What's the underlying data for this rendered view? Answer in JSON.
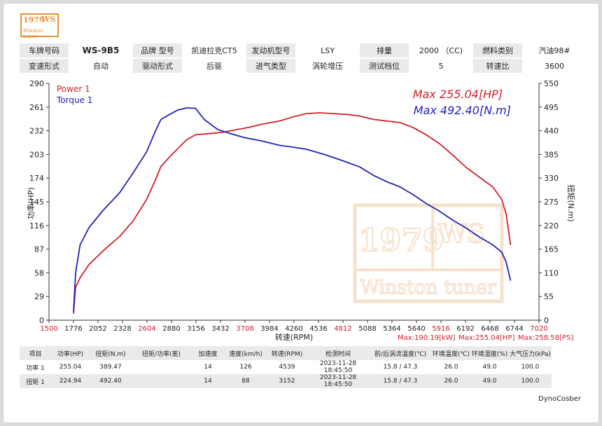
{
  "logo": {
    "year": "1979",
    "ws": "WS",
    "sub": "Winston tuner"
  },
  "info_rows": [
    [
      {
        "label": "车牌号码",
        "value": "WS-9B5",
        "bold": true
      },
      {
        "label": "品牌 型号",
        "value": "凯迪拉克CT5"
      },
      {
        "label": "发动机型号",
        "value": "LSY"
      },
      {
        "label": "排量",
        "value": "2000 （CC)"
      },
      {
        "label": "燃料类别",
        "value": "汽油98#"
      }
    ],
    [
      {
        "label": "变速形式",
        "value": "自动"
      },
      {
        "label": "驱动形式",
        "value": "后驱"
      },
      {
        "label": "进气类型",
        "value": "涡轮增压"
      },
      {
        "label": "测试档位",
        "value": "5"
      },
      {
        "label": "转速比",
        "value": "3600"
      }
    ]
  ],
  "chart_data": {
    "type": "line",
    "xlabel": "转速(RPM)",
    "ylabel": "功率(HP)",
    "y2label": "扭矩(N.m)",
    "xlim": [
      1500,
      7020
    ],
    "ylim": [
      0,
      290
    ],
    "y2lim": [
      0,
      550
    ],
    "x_ticks": [
      1500,
      1776,
      2052,
      2328,
      2604,
      2880,
      3156,
      3432,
      3708,
      3984,
      4260,
      4536,
      4812,
      5088,
      5364,
      5640,
      5916,
      6192,
      6468,
      6744,
      7020
    ],
    "x_tick_red": [
      1500,
      2604,
      3708,
      4812,
      5916,
      7020
    ],
    "y_ticks": [
      0,
      29,
      58,
      87,
      116,
      145,
      174,
      203,
      232,
      261,
      290
    ],
    "y2_ticks": [
      0,
      55,
      110,
      165,
      220,
      275,
      330,
      385,
      440,
      495,
      550
    ],
    "grid": false,
    "legend_position": "top-left",
    "series": [
      {
        "name": "Power 1",
        "color": "#d0202a",
        "axis": "left",
        "x": [
          1776,
          1800,
          1850,
          1950,
          2100,
          2300,
          2450,
          2600,
          2700,
          2760,
          2850,
          2950,
          3050,
          3150,
          3250,
          3450,
          3600,
          3750,
          3900,
          4100,
          4250,
          4400,
          4550,
          4700,
          4850,
          5000,
          5150,
          5300,
          5450,
          5600,
          5750,
          5900,
          6050,
          6200,
          6350,
          6500,
          6600,
          6650,
          6700
        ],
        "values": [
          8,
          40,
          52,
          68,
          84,
          103,
          122,
          148,
          172,
          188,
          199,
          210,
          221,
          227,
          228,
          230,
          233,
          236,
          240,
          244,
          249,
          253,
          254,
          253,
          252,
          250,
          246,
          244,
          242,
          236,
          227,
          216,
          202,
          187,
          175,
          163,
          148,
          130,
          92
        ]
      },
      {
        "name": "Torque 1",
        "color": "#2222b8",
        "axis": "right",
        "x": [
          1776,
          1800,
          1850,
          1950,
          2100,
          2300,
          2450,
          2600,
          2700,
          2760,
          2850,
          2950,
          3050,
          3150,
          3250,
          3400,
          3550,
          3700,
          3900,
          4100,
          4250,
          4400,
          4600,
          4800,
          5000,
          5150,
          5300,
          5450,
          5600,
          5750,
          5900,
          6050,
          6200,
          6350,
          6500,
          6600,
          6650,
          6700
        ],
        "values": [
          20,
          110,
          175,
          215,
          253,
          297,
          343,
          391,
          440,
          466,
          477,
          488,
          493,
          492,
          466,
          443,
          433,
          424,
          416,
          406,
          402,
          397,
          385,
          371,
          356,
          337,
          322,
          310,
          292,
          271,
          253,
          232,
          214,
          193,
          175,
          158,
          135,
          92
        ]
      }
    ],
    "annotations": {
      "max_power": "Max 255.04[HP]",
      "max_torque": "Max 492.40[N.m]"
    },
    "bottom_maxes": [
      "Max:190.19[kW]",
      "Max:255.04[HP]",
      "Max:258.58[PS]"
    ]
  },
  "summary_table": {
    "headers": [
      "项目",
      "功率(HP)",
      "扭矩(N.m)",
      "扭矩/功率(差)",
      "加速度",
      "速度(km/h)",
      "转速(RPM)",
      "检测时间",
      "前/后涡流温度(℃)",
      "环境温度(℃)",
      "环境湿度(%)",
      "大气压力(kPa)"
    ],
    "rows": [
      [
        "功率 1",
        "255.04",
        "389.47",
        "",
        "14",
        "126",
        "4539",
        "2023-11-28 18:45:50",
        "15.8 / 47.3",
        "26.0",
        "49.0",
        "100.0"
      ],
      [
        "扭矩 1",
        "224.94",
        "492.40",
        "",
        "14",
        "88",
        "3152",
        "2023-11-28 18:45:50",
        "15.8 / 47.3",
        "26.0",
        "49.0",
        "100.0"
      ]
    ]
  },
  "footer": "DynoCosber",
  "colors": {
    "power": "#d0202a",
    "torque": "#2222b8",
    "watermark": "#f2c9a3"
  }
}
